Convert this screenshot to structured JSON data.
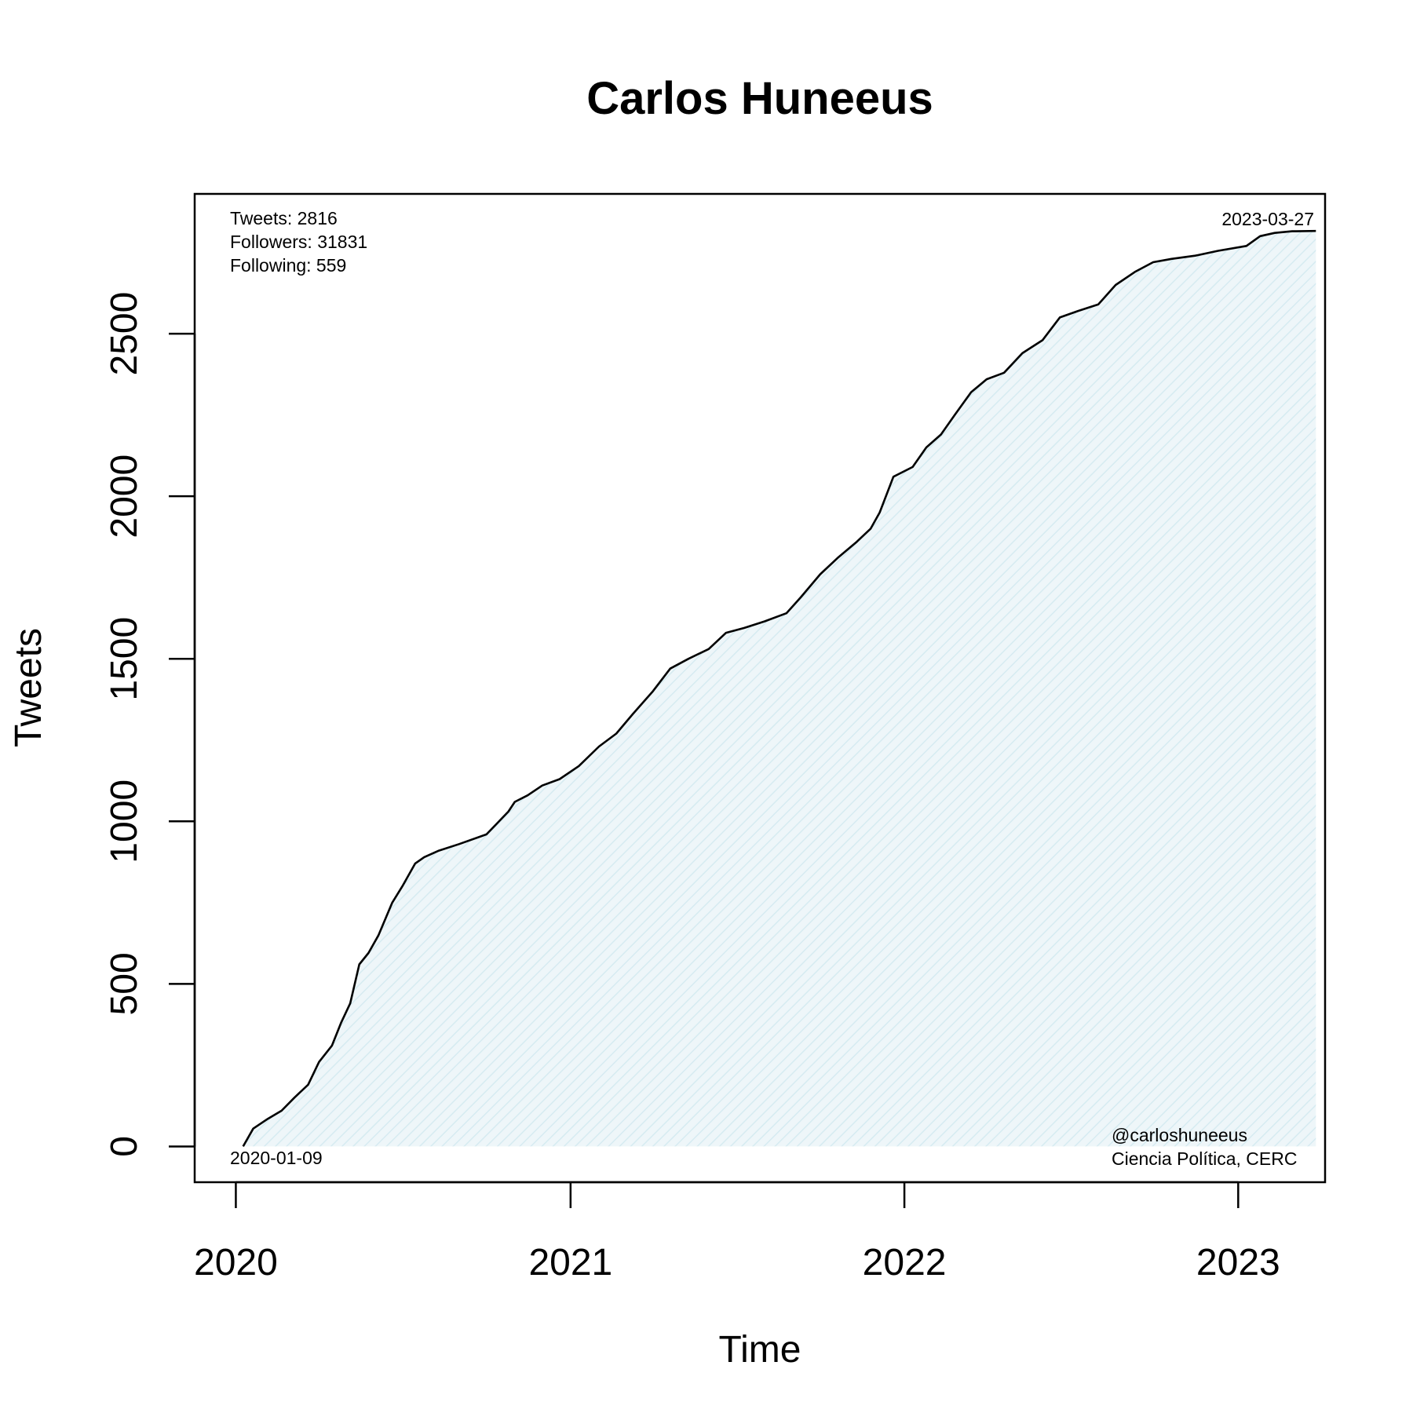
{
  "chart_data": {
    "type": "area",
    "title": "Carlos Huneeus",
    "xlabel": "Time",
    "ylabel": "Tweets",
    "x_ticks": [
      "2020",
      "2021",
      "2022",
      "2023"
    ],
    "y_ticks": [
      0,
      500,
      1000,
      1500,
      2000,
      2500
    ],
    "xlim": [
      "2019-11-17",
      "2023-04-06"
    ],
    "ylim": [
      -110,
      2930
    ],
    "grid": false,
    "fill_color": "#e3f1f5",
    "line_color": "#000000",
    "series": [
      {
        "x": [
          "2020-01-09",
          "2020-01-20",
          "2020-02-05",
          "2020-02-20",
          "2020-03-05",
          "2020-03-20",
          "2020-04-01",
          "2020-04-15",
          "2020-04-25",
          "2020-05-05",
          "2020-05-15",
          "2020-05-25",
          "2020-06-05",
          "2020-06-20",
          "2020-07-01",
          "2020-07-15",
          "2020-07-25",
          "2020-08-10",
          "2020-09-01",
          "2020-10-01",
          "2020-10-25",
          "2020-11-01",
          "2020-11-15",
          "2020-12-01",
          "2020-12-20",
          "2021-01-10",
          "2021-02-01",
          "2021-02-20",
          "2021-03-10",
          "2021-04-01",
          "2021-04-20",
          "2021-05-10",
          "2021-06-01",
          "2021-06-20",
          "2021-07-10",
          "2021-08-01",
          "2021-08-25",
          "2021-09-10",
          "2021-10-01",
          "2021-10-20",
          "2021-11-10",
          "2021-11-25",
          "2021-12-05",
          "2021-12-20",
          "2022-01-10",
          "2022-01-25",
          "2022-02-10",
          "2022-02-25",
          "2022-03-15",
          "2022-04-01",
          "2022-04-20",
          "2022-05-10",
          "2022-06-01",
          "2022-06-20",
          "2022-07-10",
          "2022-08-01",
          "2022-08-20",
          "2022-09-10",
          "2022-09-30",
          "2022-10-20",
          "2022-11-15",
          "2022-12-10",
          "2023-01-10",
          "2023-01-25",
          "2023-02-10",
          "2023-03-01",
          "2023-03-27"
        ],
        "y": [
          0,
          55,
          85,
          110,
          150,
          190,
          260,
          310,
          380,
          440,
          560,
          595,
          650,
          750,
          800,
          870,
          890,
          910,
          930,
          960,
          1030,
          1060,
          1080,
          1110,
          1130,
          1170,
          1230,
          1270,
          1330,
          1400,
          1470,
          1500,
          1530,
          1580,
          1595,
          1615,
          1640,
          1690,
          1760,
          1810,
          1860,
          1900,
          1950,
          2060,
          2090,
          2150,
          2190,
          2250,
          2320,
          2360,
          2380,
          2440,
          2480,
          2550,
          2570,
          2590,
          2650,
          2690,
          2720,
          2730,
          2740,
          2755,
          2770,
          2800,
          2810,
          2815,
          2816
        ]
      }
    ],
    "annotations": {
      "tweets": "Tweets: 2816",
      "followers": "Followers: 31831",
      "following": "Following: 559",
      "end_date": "2023-03-27",
      "start_date": "2020-01-09",
      "handle": "@carloshuneeus",
      "affiliation": "Ciencia Política, CERC"
    }
  }
}
